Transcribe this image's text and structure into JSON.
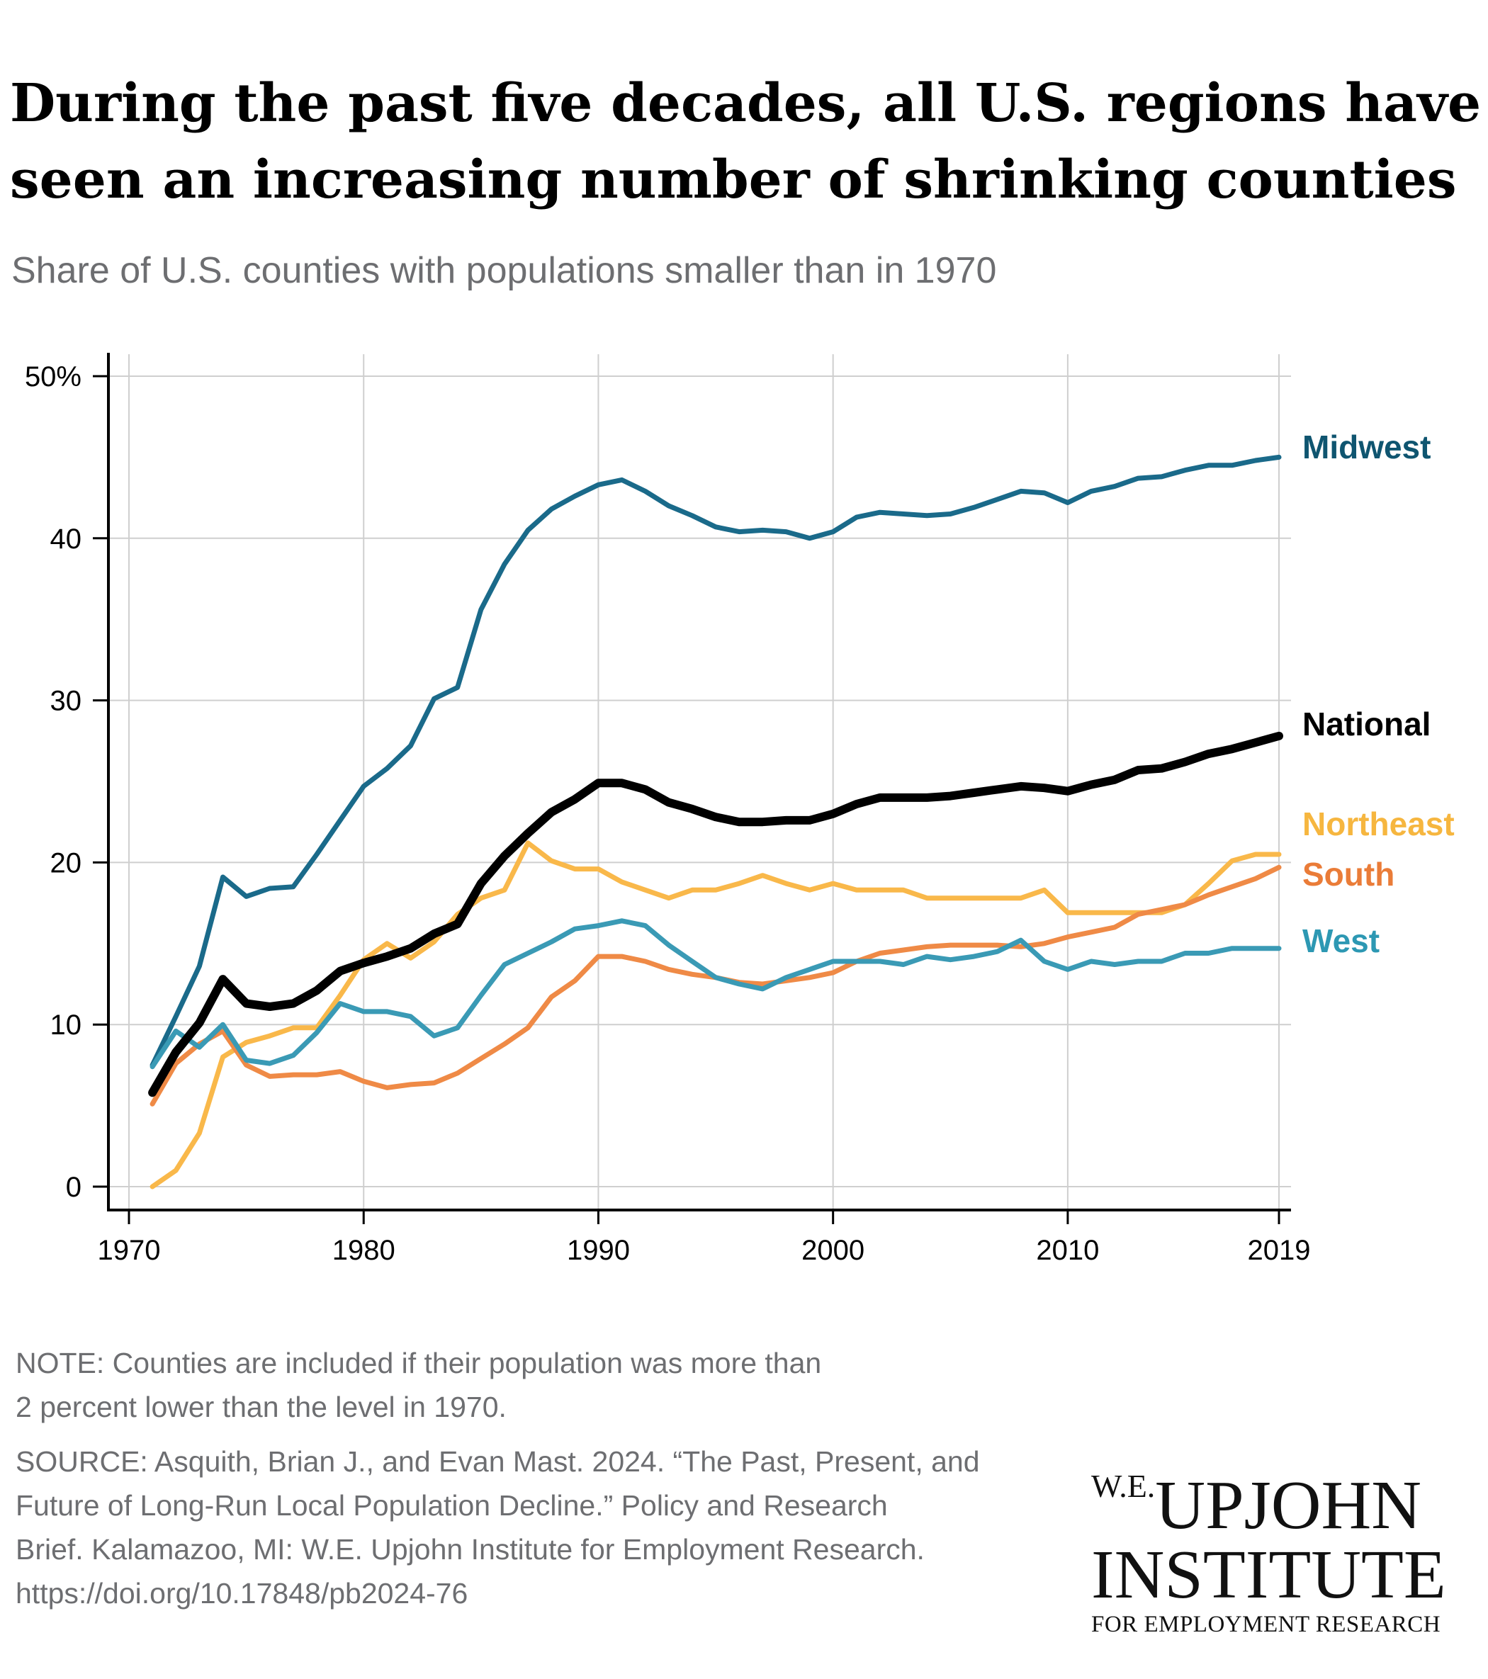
{
  "title_lines": [
    "During the past five decades, all U.S. regions have",
    "seen an increasing number of shrinking counties"
  ],
  "subtitle": "Share of U.S. counties with populations smaller than in 1970",
  "note_lines": [
    "NOTE: Counties are included if their population was more than",
    "2 percent lower than the level in 1970."
  ],
  "source_lines": [
    "SOURCE: Asquith, Brian J., and Evan Mast. 2024. “The Past, Present, and",
    "Future of Long-Run Local Population Decline.” Policy and Research",
    "Brief. Kalamazoo, MI: W.E. Upjohn Institute for Employment Research.",
    "https://doi.org/10.17848/pb2024-76"
  ],
  "logo": {
    "line1_prefix": "W.E.",
    "line1_main": "UPJOHN",
    "line2": "INSTITUTE",
    "line3": "FOR EMPLOYMENT RESEARCH"
  },
  "chart_data": {
    "type": "line",
    "xlim": [
      1970,
      2019
    ],
    "ylim": [
      0,
      50
    ],
    "x_ticks": [
      1970,
      1980,
      1990,
      2000,
      2010,
      2019
    ],
    "x_tick_labels": [
      "1970",
      "1980",
      "1990",
      "2000",
      "2010",
      "2019"
    ],
    "y_ticks": [
      0,
      10,
      20,
      30,
      40,
      50
    ],
    "y_tick_labels": [
      "0",
      "10",
      "20",
      "30",
      "40",
      "50%"
    ],
    "grid": true,
    "legend": "direct labels at right end of lines",
    "x": [
      1971,
      1972,
      1973,
      1974,
      1975,
      1976,
      1977,
      1978,
      1979,
      1980,
      1981,
      1982,
      1983,
      1984,
      1985,
      1986,
      1987,
      1988,
      1989,
      1990,
      1991,
      1992,
      1993,
      1994,
      1995,
      1996,
      1997,
      1998,
      1999,
      2000,
      2001,
      2002,
      2003,
      2004,
      2005,
      2006,
      2007,
      2008,
      2009,
      2010,
      2011,
      2012,
      2013,
      2014,
      2015,
      2016,
      2017,
      2018,
      2019
    ],
    "series": [
      {
        "name": "Midwest",
        "color": "#1a6a8a",
        "label_color": "#0f5570",
        "values": [
          7.5,
          10.5,
          13.6,
          19.1,
          17.9,
          18.4,
          18.5,
          20.5,
          22.6,
          24.7,
          25.8,
          27.2,
          30.1,
          30.8,
          35.6,
          38.4,
          40.5,
          41.8,
          42.6,
          43.3,
          43.6,
          42.9,
          42.0,
          41.4,
          40.7,
          40.4,
          40.5,
          40.4,
          40.0,
          40.4,
          41.3,
          41.6,
          41.5,
          41.4,
          41.5,
          41.9,
          42.4,
          42.9,
          42.8,
          42.2,
          42.9,
          43.2,
          43.7,
          43.8,
          44.2,
          44.5,
          44.5,
          44.8,
          45.0
        ]
      },
      {
        "name": "National",
        "color": "#000000",
        "label_color": "#000000",
        "values": [
          5.8,
          8.3,
          10.1,
          12.8,
          11.3,
          11.1,
          11.3,
          12.1,
          13.3,
          13.8,
          14.2,
          14.7,
          15.6,
          16.2,
          18.7,
          20.4,
          21.8,
          23.1,
          23.9,
          24.9,
          24.9,
          24.5,
          23.7,
          23.3,
          22.8,
          22.5,
          22.5,
          22.6,
          22.6,
          23.0,
          23.6,
          24.0,
          24.0,
          24.0,
          24.1,
          24.3,
          24.5,
          24.7,
          24.6,
          24.4,
          24.8,
          25.1,
          25.7,
          25.8,
          26.2,
          26.7,
          27.0,
          27.4,
          27.8
        ]
      },
      {
        "name": "Northeast",
        "color": "#f9b84a",
        "label_color": "#f6b63f",
        "values": [
          0.0,
          1.0,
          3.3,
          8.0,
          8.9,
          9.3,
          9.8,
          9.8,
          11.8,
          14.0,
          15.0,
          14.1,
          15.1,
          16.8,
          17.8,
          18.3,
          21.2,
          20.1,
          19.6,
          19.6,
          18.8,
          18.3,
          17.8,
          18.3,
          18.3,
          18.7,
          19.2,
          18.7,
          18.3,
          18.7,
          18.3,
          18.3,
          18.3,
          17.8,
          17.8,
          17.8,
          17.8,
          17.8,
          18.3,
          16.9,
          16.9,
          16.9,
          16.9,
          16.9,
          17.4,
          18.7,
          20.1,
          20.5,
          20.5
        ]
      },
      {
        "name": "South",
        "color": "#ef8a46",
        "label_color": "#ea7c38",
        "values": [
          5.1,
          7.6,
          8.8,
          9.6,
          7.5,
          6.8,
          6.9,
          6.9,
          7.1,
          6.5,
          6.1,
          6.3,
          6.4,
          7.0,
          7.9,
          8.8,
          9.8,
          11.7,
          12.7,
          14.2,
          14.2,
          13.9,
          13.4,
          13.1,
          12.9,
          12.6,
          12.5,
          12.7,
          12.9,
          13.2,
          13.9,
          14.4,
          14.6,
          14.8,
          14.9,
          14.9,
          14.9,
          14.8,
          15.0,
          15.4,
          15.7,
          16.0,
          16.8,
          17.1,
          17.4,
          18.0,
          18.5,
          19.0,
          19.7
        ]
      },
      {
        "name": "West",
        "color": "#3a9ab5",
        "label_color": "#2d98b3",
        "values": [
          7.4,
          9.6,
          8.6,
          10.0,
          7.8,
          7.6,
          8.1,
          9.5,
          11.3,
          10.8,
          10.8,
          10.5,
          9.3,
          9.8,
          11.8,
          13.7,
          14.4,
          15.1,
          15.9,
          16.1,
          16.4,
          16.1,
          14.9,
          13.9,
          12.9,
          12.5,
          12.2,
          12.9,
          13.4,
          13.9,
          13.9,
          13.9,
          13.7,
          14.2,
          14.0,
          14.2,
          14.5,
          15.2,
          13.9,
          13.4,
          13.9,
          13.7,
          13.9,
          13.9,
          14.4,
          14.4,
          14.7,
          14.7,
          14.7
        ]
      }
    ]
  }
}
